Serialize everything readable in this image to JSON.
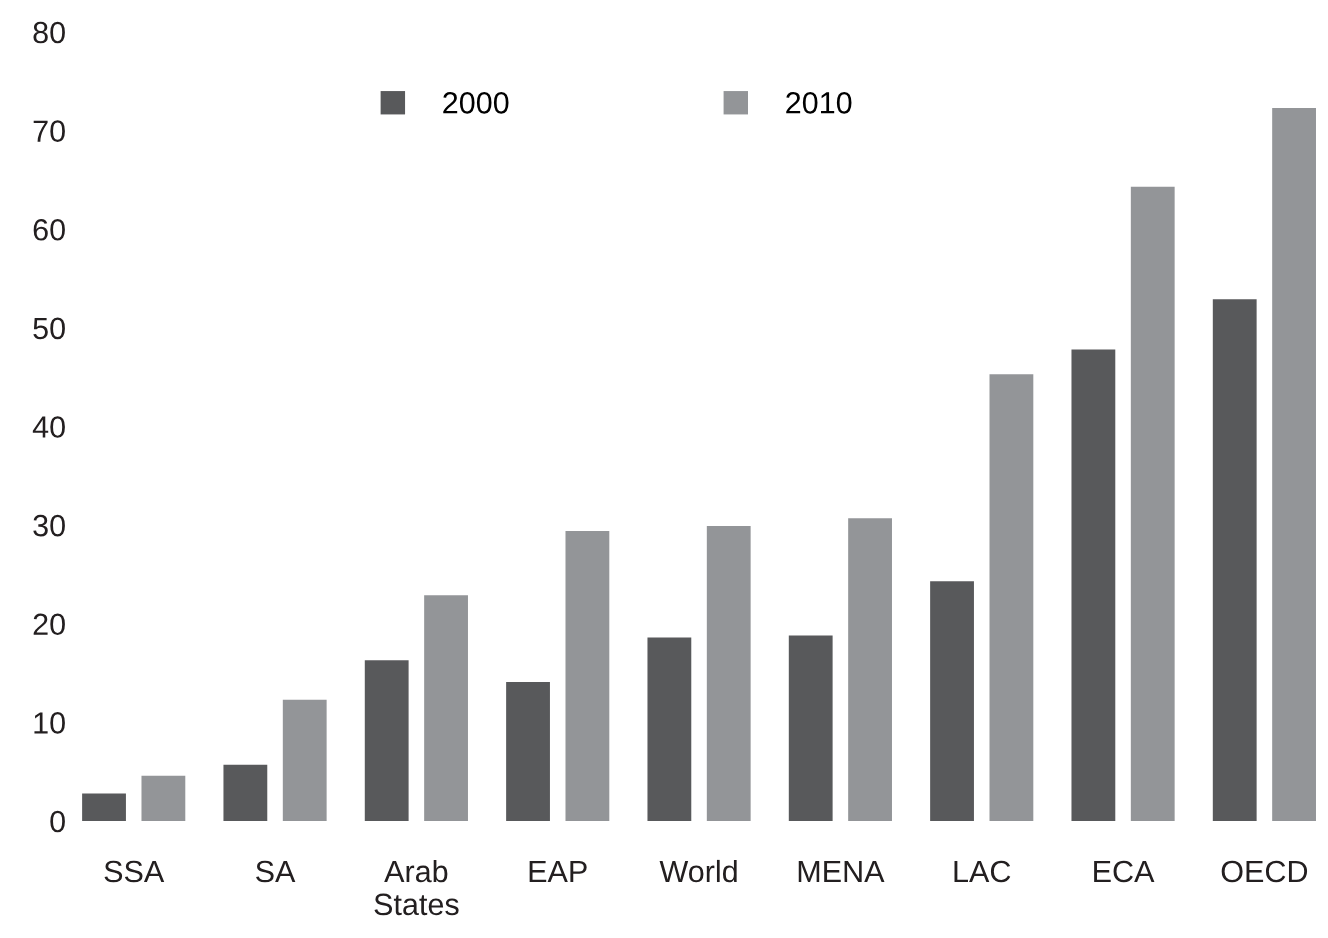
{
  "chart_data": {
    "type": "bar",
    "categories": [
      "SSA",
      "SA",
      "Arab\nStates",
      "EAP",
      "World",
      "MENA",
      "LAC",
      "ECA",
      "OECD"
    ],
    "series": [
      {
        "name": "2000",
        "color": "#58595b",
        "values": [
          2.8,
          5.7,
          16.3,
          14.1,
          18.6,
          18.8,
          24.3,
          47.8,
          52.9
        ]
      },
      {
        "name": "2010",
        "color": "#939598",
        "values": [
          4.6,
          12.3,
          22.9,
          29.4,
          29.9,
          30.7,
          45.3,
          64.3,
          72.3
        ]
      }
    ],
    "ylim": [
      0,
      80
    ],
    "yticks": [
      0,
      10,
      20,
      30,
      40,
      50,
      60,
      70,
      80
    ],
    "grid": false,
    "legend": "top"
  }
}
